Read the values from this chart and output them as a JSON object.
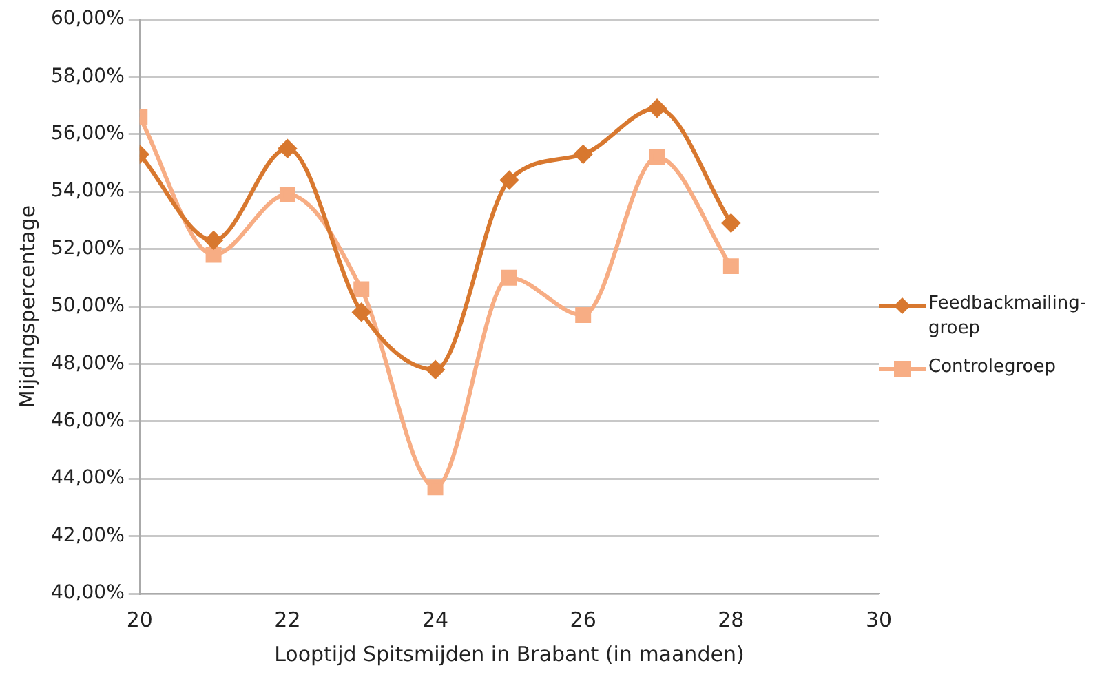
{
  "chart_data": {
    "type": "line",
    "xlabel": "Looptijd Spitsmijden in Brabant (in maanden)",
    "ylabel": "Mijdingspercentage",
    "x": [
      20,
      21,
      22,
      23,
      24,
      25,
      26,
      27,
      28
    ],
    "series": [
      {
        "name": "Feedbackmailing-groep",
        "color": "#d8782f",
        "marker": "diamond",
        "values": [
          55.3,
          52.3,
          55.5,
          49.8,
          47.8,
          54.4,
          55.3,
          56.9,
          52.9
        ]
      },
      {
        "name": "Controlegroep",
        "color": "#f7ad84",
        "marker": "square",
        "values": [
          56.6,
          51.8,
          53.9,
          50.6,
          43.7,
          51.0,
          49.7,
          55.2,
          51.4
        ]
      }
    ],
    "xlim": [
      20,
      30
    ],
    "xticks": [
      20,
      22,
      24,
      26,
      28,
      30
    ],
    "ylim": [
      40,
      60
    ],
    "yticks": [
      {
        "value": 40,
        "label": "40,00%"
      },
      {
        "value": 42,
        "label": "42,00%"
      },
      {
        "value": 44,
        "label": "44,00%"
      },
      {
        "value": 46,
        "label": "46,00%"
      },
      {
        "value": 48,
        "label": "48,00%"
      },
      {
        "value": 50,
        "label": "50,00%"
      },
      {
        "value": 52,
        "label": "52,00%"
      },
      {
        "value": 54,
        "label": "54,00%"
      },
      {
        "value": 56,
        "label": "56,00%"
      },
      {
        "value": 58,
        "label": "58,00%"
      },
      {
        "value": 60,
        "label": "60,00%"
      }
    ],
    "grid": "y",
    "legend": "right"
  }
}
